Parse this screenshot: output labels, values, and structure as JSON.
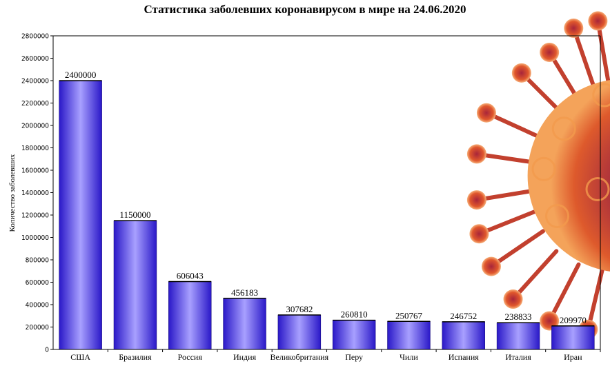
{
  "chart_data": {
    "type": "bar",
    "title": "Статистика заболевших коронавирусом в мире на 24.06.2020",
    "xlabel": "",
    "ylabel": "Количество заболевших",
    "categories": [
      "США",
      "Бразилия",
      "Россия",
      "Индия",
      "Великобритания",
      "Перу",
      "Чили",
      "Испания",
      "Италия",
      "Иран"
    ],
    "values": [
      2400000,
      1150000,
      606043,
      456183,
      307682,
      260810,
      250767,
      246752,
      238833,
      209970
    ],
    "data_labels": [
      "2400000",
      "1150000",
      "606043",
      "456183",
      "307682",
      "260810",
      "250767",
      "246752",
      "238833",
      "209970"
    ],
    "ylim": [
      0,
      2800000
    ],
    "ytick_step": 200000,
    "grid": false,
    "legend": "none",
    "bar_color": "#3b2fe0",
    "bar_highlight": "#a8a0ff",
    "virus_colors": {
      "core": "#7a1e3a",
      "mid": "#d2472a",
      "edge": "#f39a4c"
    }
  }
}
